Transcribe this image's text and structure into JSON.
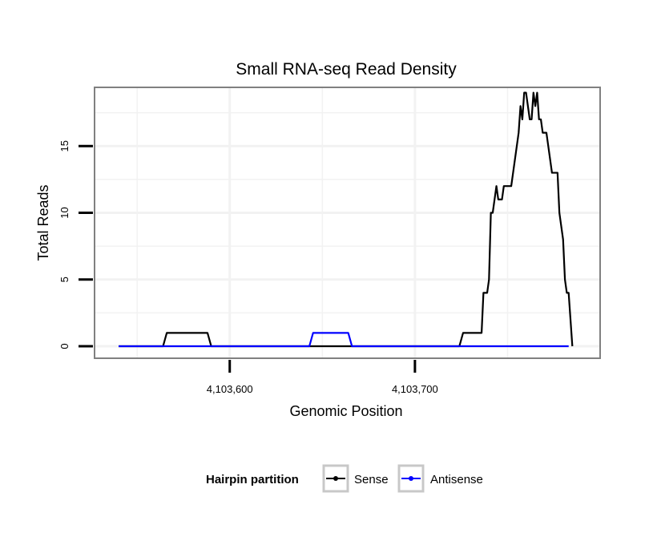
{
  "chart_data": {
    "type": "line",
    "title": "Small RNA-seq Read Density",
    "xlabel": "Genomic Position",
    "ylabel": "Total Reads",
    "xlim": [
      4103527,
      4103800
    ],
    "ylim": [
      -0.9,
      19.4
    ],
    "x_ticks": [
      4103600,
      4103700
    ],
    "x_tick_labels": [
      "4,103,600",
      "4,103,700"
    ],
    "y_ticks": [
      0,
      5,
      10,
      15
    ],
    "y_tick_labels": [
      "0",
      "5",
      "10",
      "15"
    ],
    "grid": true,
    "legend": {
      "title": "Hairpin partition",
      "position": "bottom"
    },
    "series": [
      {
        "name": "Sense",
        "color": "#000000",
        "points": [
          [
            4103540,
            0
          ],
          [
            4103564,
            0
          ],
          [
            4103566,
            1
          ],
          [
            4103588,
            1
          ],
          [
            4103590,
            0
          ],
          [
            4103724,
            0
          ],
          [
            4103726,
            1
          ],
          [
            4103736,
            1
          ],
          [
            4103737,
            4
          ],
          [
            4103739,
            4
          ],
          [
            4103740,
            5
          ],
          [
            4103741,
            10
          ],
          [
            4103742,
            10
          ],
          [
            4103743,
            11
          ],
          [
            4103744,
            12
          ],
          [
            4103745,
            11
          ],
          [
            4103747,
            11
          ],
          [
            4103748,
            12
          ],
          [
            4103752,
            12
          ],
          [
            4103753,
            13
          ],
          [
            4103756,
            16
          ],
          [
            4103757,
            18
          ],
          [
            4103758,
            17
          ],
          [
            4103759,
            19
          ],
          [
            4103760,
            19
          ],
          [
            4103761,
            18
          ],
          [
            4103762,
            17
          ],
          [
            4103763,
            17
          ],
          [
            4103764,
            19
          ],
          [
            4103765,
            18
          ],
          [
            4103766,
            19
          ],
          [
            4103767,
            17
          ],
          [
            4103768,
            17
          ],
          [
            4103769,
            16
          ],
          [
            4103771,
            16
          ],
          [
            4103772,
            15
          ],
          [
            4103773,
            14
          ],
          [
            4103774,
            13
          ],
          [
            4103777,
            13
          ],
          [
            4103778,
            10
          ],
          [
            4103779,
            9
          ],
          [
            4103780,
            8
          ],
          [
            4103781,
            5
          ],
          [
            4103782,
            4
          ],
          [
            4103783,
            4
          ],
          [
            4103785,
            0
          ]
        ]
      },
      {
        "name": "Antisense",
        "color": "#0000ff",
        "points": [
          [
            4103540,
            0
          ],
          [
            4103643,
            0
          ],
          [
            4103645,
            1
          ],
          [
            4103664,
            1
          ],
          [
            4103666,
            0
          ],
          [
            4103783,
            0
          ]
        ]
      }
    ]
  }
}
